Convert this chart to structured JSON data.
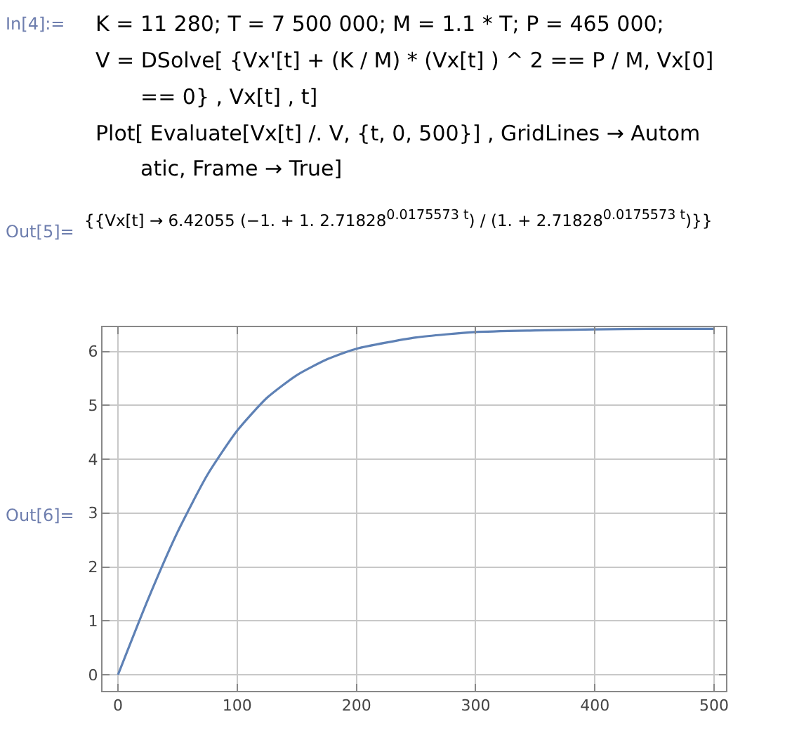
{
  "chart_data": {
    "type": "line",
    "annotations": [
      "In[4]:=",
      "K = 11 280; T = 7 500 000; M = 1.1 * T; P = 465 000;",
      "V = DSolve[ {Vx'[t] + (K / M) * (Vx[t] ) ^ 2 == P / M, Vx[0]",
      "== 0} , Vx[t] , t]",
      "Plot[ Evaluate[Vx[t] /. V, {t, 0, 500}] , GridLines → Autom",
      "atic, Frame → True]",
      "Out[5]=",
      "{{Vx[t] → 6.42055 (−1. + 1. 2.71828$^{0.0175573 t}$) / (1. + 2.71828$^{0.0175573 t}$)}}",
      "Out[6]="
    ],
    "x": [
      0,
      25,
      50,
      75,
      100,
      125,
      150,
      175,
      200,
      250,
      300,
      350,
      400,
      450,
      500
    ],
    "series": [
      {
        "color": "#5e81b5",
        "values": [
          0,
          1.39,
          2.65,
          3.71,
          4.53,
          5.14,
          5.56,
          5.85,
          6.05,
          6.26,
          6.36,
          6.39,
          6.41,
          6.42,
          6.42
        ]
      }
    ],
    "xlim": [
      -13,
      510
    ],
    "xticks": [
      0,
      100,
      200,
      300,
      400,
      500
    ],
    "ylim": [
      -0.3,
      6.45
    ],
    "yticks": [
      0,
      1,
      2,
      3,
      4,
      5,
      6
    ],
    "grid": true
  }
}
